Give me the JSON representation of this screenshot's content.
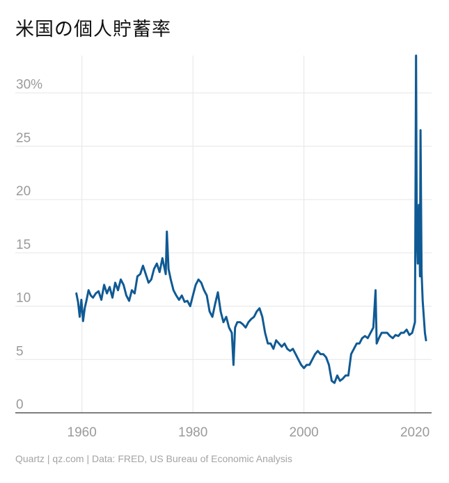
{
  "title": "米国の個人貯蓄率",
  "footer": "Quartz | qz.com | Data: FRED, US Bureau of Economic Analysis",
  "chart_data": {
    "type": "line",
    "title": "米国の個人貯蓄率",
    "xlabel": "",
    "ylabel": "",
    "xlim": [
      1948,
      2023
    ],
    "ylim": [
      0,
      33.5
    ],
    "x_ticks": [
      1960,
      1980,
      2000,
      2020
    ],
    "x_tick_labels": [
      "1960",
      "1980",
      "2000",
      "2020"
    ],
    "y_ticks": [
      0,
      5,
      10,
      15,
      20,
      25,
      30
    ],
    "y_tick_labels": [
      "0",
      "5",
      "10",
      "15",
      "20",
      "25",
      "30%"
    ],
    "grid": true,
    "line_color": "#0f5a94",
    "series": [
      {
        "values_x": [
          1959,
          1959.3,
          1959.6,
          1959.9,
          1960.2,
          1960.5,
          1960.8,
          1961.2,
          1961.6,
          1962,
          1962.5,
          1963,
          1963.5,
          1964,
          1964.5,
          1965,
          1965.5,
          1966,
          1966.5,
          1967,
          1967.5,
          1968,
          1968.5,
          1969,
          1969.5,
          1970,
          1970.5,
          1971,
          1971.5,
          1972,
          1972.5,
          1973,
          1973.5,
          1974,
          1974.5,
          1975.1,
          1975.3,
          1975.6,
          1976,
          1976.5,
          1977,
          1977.5,
          1978,
          1978.5,
          1979,
          1979.5,
          1980,
          1980.5,
          1981,
          1981.5,
          1982,
          1982.5,
          1983,
          1983.5,
          1984,
          1984.5,
          1985,
          1985.5,
          1986,
          1986.5,
          1987,
          1987.3,
          1987.6,
          1988,
          1988.5,
          1989,
          1989.5,
          1990,
          1990.5,
          1991,
          1991.5,
          1992,
          1992.5,
          1993,
          1993.5,
          1994,
          1994.5,
          1995,
          1995.5,
          1996,
          1996.5,
          1997,
          1997.5,
          1998,
          1998.5,
          1999,
          1999.5,
          2000,
          2000.5,
          2001,
          2001.5,
          2002,
          2002.5,
          2003,
          2003.5,
          2004,
          2004.5,
          2005,
          2005.5,
          2006,
          2006.5,
          2007,
          2007.5,
          2008,
          2008.5,
          2009,
          2009.5,
          2010,
          2010.5,
          2011,
          2011.5,
          2012,
          2012.5,
          2012.9,
          2013.1,
          2013.5,
          2014,
          2014.5,
          2015,
          2015.5,
          2016,
          2016.5,
          2017,
          2017.5,
          2018,
          2018.5,
          2019,
          2019.5,
          2020,
          2020.2,
          2020.33,
          2020.5,
          2020.7,
          2020.9,
          2021.0,
          2021.2,
          2021.4,
          2021.6,
          2021.8,
          2022.0
        ],
        "values": [
          11.2,
          10.4,
          9.0,
          10.6,
          8.6,
          9.8,
          10.5,
          11.5,
          11.0,
          10.8,
          11.2,
          11.4,
          10.6,
          12.0,
          11.2,
          11.8,
          10.8,
          12.2,
          11.5,
          12.5,
          12.0,
          11.0,
          10.5,
          11.5,
          11.2,
          12.8,
          13.0,
          13.8,
          13.0,
          12.2,
          12.5,
          13.5,
          14.0,
          13.2,
          14.5,
          13.0,
          17.0,
          13.5,
          12.5,
          11.5,
          11.0,
          10.6,
          11.0,
          10.4,
          10.5,
          10.0,
          11.0,
          12.0,
          12.5,
          12.2,
          11.5,
          11.0,
          9.5,
          9.0,
          10.2,
          11.3,
          9.5,
          8.5,
          9.0,
          8.0,
          7.5,
          4.5,
          8.0,
          8.5,
          8.5,
          8.3,
          8.0,
          8.5,
          8.8,
          9.0,
          9.5,
          9.8,
          9.0,
          7.5,
          6.5,
          6.5,
          6.0,
          6.8,
          6.5,
          6.2,
          6.5,
          6.0,
          5.8,
          6.0,
          5.5,
          5.0,
          4.5,
          4.2,
          4.5,
          4.5,
          5.0,
          5.5,
          5.8,
          5.5,
          5.5,
          5.2,
          4.5,
          3.0,
          2.8,
          3.5,
          3.0,
          3.2,
          3.5,
          3.5,
          5.5,
          6.0,
          6.5,
          6.5,
          7.0,
          7.2,
          7.0,
          7.5,
          8.0,
          11.5,
          6.5,
          7.0,
          7.5,
          7.5,
          7.5,
          7.2,
          7.0,
          7.3,
          7.2,
          7.5,
          7.5,
          7.8,
          7.3,
          7.5,
          8.5,
          33.5,
          17.0,
          14.0,
          19.5,
          12.8,
          26.5,
          13.2,
          10.5,
          9.0,
          7.5,
          6.8
        ]
      }
    ]
  }
}
